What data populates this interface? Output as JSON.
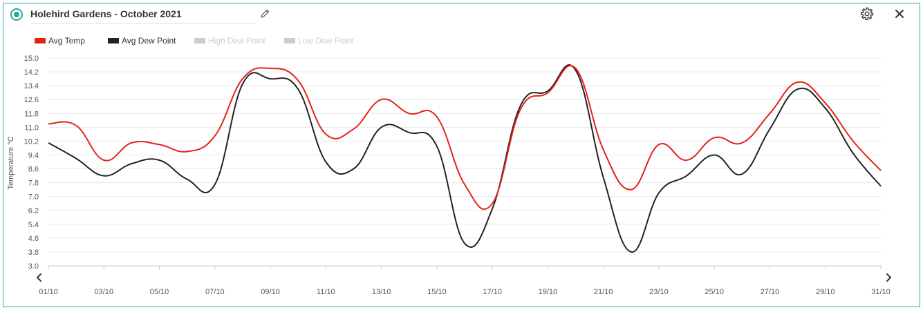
{
  "header": {
    "title": "Holehird Gardens - October 2021",
    "radio_icon": "radio-selected-icon",
    "edit_icon": "pencil-icon",
    "settings_icon": "gear-icon",
    "close_icon": "close-icon"
  },
  "chart_data": {
    "type": "line",
    "title": "",
    "xlabel": "",
    "ylabel": "Temperature °C",
    "ylim": [
      3.0,
      15.0
    ],
    "yticks": [
      "15.0",
      "14.2",
      "13.4",
      "12.6",
      "11.8",
      "11.0",
      "10.2",
      "9.4",
      "8.6",
      "7.8",
      "7.0",
      "6.2",
      "5.4",
      "4.6",
      "3.8",
      "3.0"
    ],
    "xticks": [
      "01/10",
      "03/10",
      "05/10",
      "07/10",
      "09/10",
      "11/10",
      "13/10",
      "15/10",
      "17/10",
      "19/10",
      "21/10",
      "23/10",
      "25/10",
      "27/10",
      "29/10",
      "31/10"
    ],
    "x": [
      "01/10",
      "02/10",
      "03/10",
      "04/10",
      "05/10",
      "06/10",
      "07/10",
      "08/10",
      "09/10",
      "10/10",
      "11/10",
      "12/10",
      "13/10",
      "14/10",
      "15/10",
      "16/10",
      "17/10",
      "18/10",
      "19/10",
      "20/10",
      "21/10",
      "22/10",
      "23/10",
      "24/10",
      "25/10",
      "26/10",
      "27/10",
      "28/10",
      "29/10",
      "30/10",
      "31/10"
    ],
    "legend_position": "top-left",
    "grid": true,
    "series": [
      {
        "name": "Avg Temp",
        "color": "#e32219",
        "visible": true,
        "values": [
          11.2,
          11.1,
          9.1,
          10.1,
          10.0,
          9.6,
          10.5,
          13.8,
          14.4,
          13.7,
          10.6,
          10.9,
          12.6,
          11.8,
          11.6,
          7.7,
          6.6,
          12.0,
          13.0,
          14.4,
          9.7,
          7.4,
          10.0,
          9.1,
          10.4,
          10.1,
          11.8,
          13.6,
          12.4,
          10.2,
          8.5
        ]
      },
      {
        "name": "Avg Dew Point",
        "color": "#222222",
        "visible": true,
        "values": [
          10.1,
          9.2,
          8.2,
          8.9,
          9.1,
          8.0,
          7.7,
          13.5,
          13.8,
          13.2,
          9.0,
          8.6,
          11.0,
          10.7,
          9.9,
          4.3,
          6.3,
          12.2,
          13.1,
          14.3,
          8.1,
          3.8,
          7.2,
          8.2,
          9.4,
          8.3,
          10.9,
          13.2,
          12.1,
          9.5,
          7.6
        ]
      },
      {
        "name": "High Dew Point",
        "color": "#cccccc",
        "visible": false
      },
      {
        "name": "Low Dew Point",
        "color": "#cccccc",
        "visible": false
      }
    ]
  },
  "nav": {
    "prev_icon": "chevron-left-icon",
    "next_icon": "chevron-right-icon"
  }
}
